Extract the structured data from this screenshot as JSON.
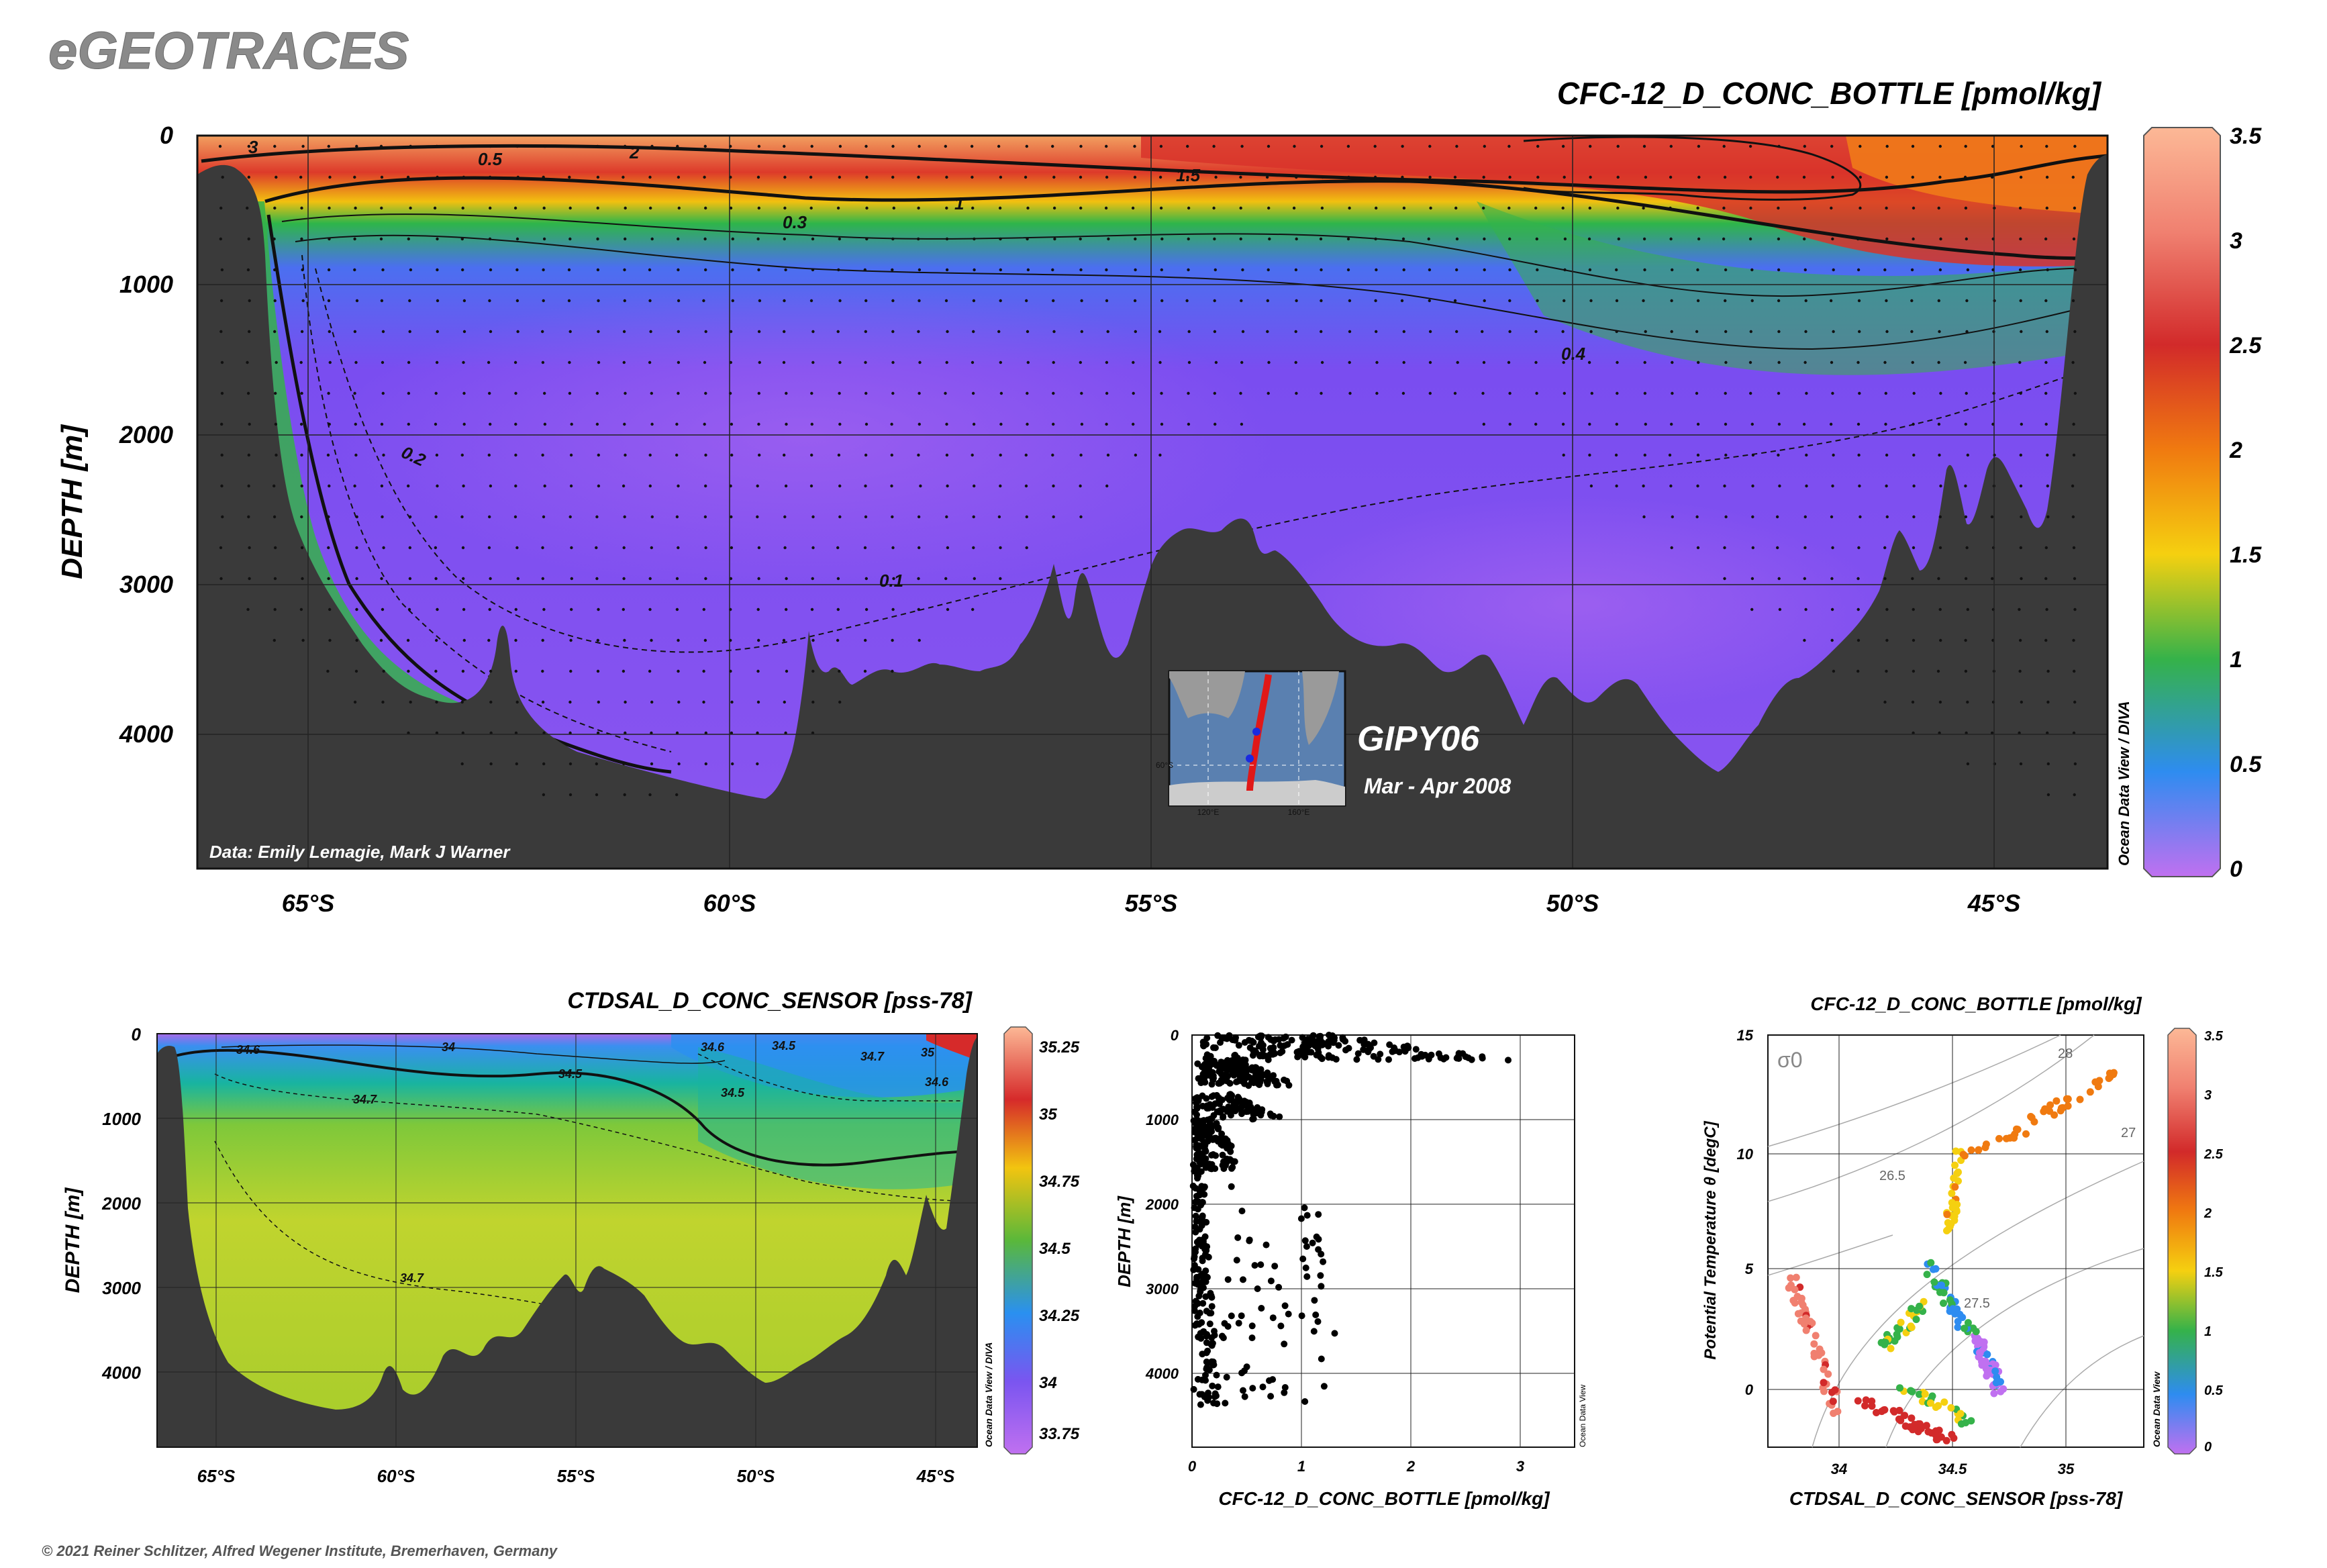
{
  "brand": "eGEOTRACES",
  "copyright": "© 2021 Reiner Schlitzer, Alfred Wegener Institute, Bremerhaven, Germany",
  "colors": {
    "bathymetry": "#3a3a3a",
    "grid": "#222222",
    "contour": "#111111"
  },
  "chart_data": [
    {
      "id": "main-section",
      "type": "heatmap",
      "title": "CFC-12_D_CONC_BOTTLE [pmol/kg]",
      "ylabel": "DEPTH [m]",
      "x_ticks": [
        "65°S",
        "60°S",
        "55°S",
        "50°S",
        "45°S"
      ],
      "y_ticks": [
        "0",
        "1000",
        "2000",
        "3000",
        "4000"
      ],
      "xlim": [
        "66.3°S",
        "43.7°S"
      ],
      "ylim": [
        0,
        4900
      ],
      "colorbar": {
        "label": "Ocean Data View / DIVA",
        "ticks": [
          "3.5",
          "3",
          "2.5",
          "2",
          "1.5",
          "1",
          "0.5",
          "0"
        ],
        "range": [
          0,
          3.5
        ]
      },
      "contour_labels": [
        "3",
        "2",
        "0.5",
        "1",
        "1.5",
        "0.3",
        "0.4",
        "0.2",
        "0.1"
      ],
      "credit": "Data: Emily Lemagie, Mark J Warner",
      "inset": {
        "cruise": "GIPY06",
        "dates": "Mar - Apr 2008",
        "lon_ticks": [
          "120°E",
          "160°E"
        ],
        "lat_tick": "60°S"
      }
    },
    {
      "id": "salinity-section",
      "type": "heatmap",
      "title": "CTDSAL_D_CONC_SENSOR [pss-78]",
      "ylabel": "DEPTH [m]",
      "x_ticks": [
        "65°S",
        "60°S",
        "55°S",
        "50°S",
        "45°S"
      ],
      "y_ticks": [
        "0",
        "1000",
        "2000",
        "3000",
        "4000"
      ],
      "ylim": [
        0,
        4900
      ],
      "colorbar": {
        "label": "Ocean Data View / DIVA",
        "ticks": [
          "35.25",
          "35",
          "34.75",
          "34.5",
          "34.25",
          "34",
          "33.75"
        ],
        "range": [
          33.75,
          35.25
        ]
      },
      "contour_labels": [
        "34.6",
        "34",
        "34.5",
        "34.6",
        "34.5",
        "34.7",
        "35",
        "34.6",
        "34.7",
        "34.5",
        "34.7"
      ]
    },
    {
      "id": "profile-scatter",
      "type": "scatter",
      "xlabel": "CFC-12_D_CONC_BOTTLE [pmol/kg]",
      "ylabel": "DEPTH [m]",
      "side_label": "Ocean Data View",
      "x_ticks": [
        "0",
        "1",
        "2",
        "3"
      ],
      "y_ticks": [
        "0",
        "1000",
        "2000",
        "3000",
        "4000"
      ],
      "xlim": [
        0,
        3.5
      ],
      "ylim": [
        0,
        4900
      ],
      "point_groups": [
        {
          "x": 0.1,
          "y": 300,
          "x2": 3.0,
          "y2": 0,
          "n": 180
        },
        {
          "x": 0.05,
          "y": 600,
          "x2": 1.0,
          "y2": 300,
          "n": 140
        },
        {
          "x": 0.02,
          "y": 1000,
          "x2": 0.9,
          "y2": 700,
          "n": 90
        },
        {
          "x": 0.01,
          "y": 1600,
          "x2": 0.5,
          "y2": 1000,
          "n": 120
        },
        {
          "x": 0.01,
          "y": 4400,
          "x2": 0.25,
          "y2": 1600,
          "n": 150
        },
        {
          "x": 0.25,
          "y": 4400,
          "x2": 1.1,
          "y2": 1800,
          "n": 45
        },
        {
          "x": 1.0,
          "y": 4300,
          "x2": 1.4,
          "y2": 2000,
          "n": 25
        }
      ]
    },
    {
      "id": "ts-diagram",
      "type": "scatter",
      "title": "CFC-12_D_CONC_BOTTLE [pmol/kg]",
      "xlabel": "CTDSAL_D_CONC_SENSOR [pss-78]",
      "ylabel": "Potential Temperature θ [degC]",
      "density_symbol": "σ0",
      "isopycnal_labels": [
        "26.5",
        "27",
        "27.5",
        "28"
      ],
      "x_ticks": [
        "34",
        "34.5",
        "35"
      ],
      "y_ticks": [
        "0",
        "5",
        "10",
        "15"
      ],
      "xlim": [
        33.7,
        35.35
      ],
      "ylim": [
        -2,
        15
      ],
      "colorbar": {
        "label": "Ocean Data View",
        "ticks": [
          "3.5",
          "3",
          "2.5",
          "2",
          "1.5",
          "1",
          "0.5",
          "0"
        ],
        "range": [
          0,
          3.5
        ]
      },
      "point_groups": [
        {
          "s0": 34.72,
          "t0": 0.3,
          "s1": 34.62,
          "t1": 2.5,
          "c": 0.15,
          "n": 60
        },
        {
          "s0": 34.6,
          "t0": 2.5,
          "s1": 34.4,
          "t1": 5.5,
          "c": 0.8,
          "n": 40
        },
        {
          "s0": 34.4,
          "t0": 4.0,
          "s1": 34.2,
          "t1": 2.0,
          "c": 1.2,
          "n": 30
        },
        {
          "s0": 34.5,
          "t0": 7.0,
          "s1": 34.55,
          "t1": 10.5,
          "c": 1.6,
          "n": 30
        },
        {
          "s0": 34.6,
          "t0": 10.0,
          "s1": 35.25,
          "t1": 13.5,
          "c": 1.9,
          "n": 40
        },
        {
          "s0": 33.8,
          "t0": 5.0,
          "s1": 34.0,
          "t1": -0.5,
          "c": 2.9,
          "n": 50
        },
        {
          "s0": 34.1,
          "t0": 0.0,
          "s1": 34.5,
          "t1": -1.7,
          "c": 2.5,
          "n": 40
        },
        {
          "s0": 34.3,
          "t0": 0.5,
          "s1": 34.6,
          "t1": -1.0,
          "c": 1.3,
          "n": 25
        }
      ]
    }
  ]
}
